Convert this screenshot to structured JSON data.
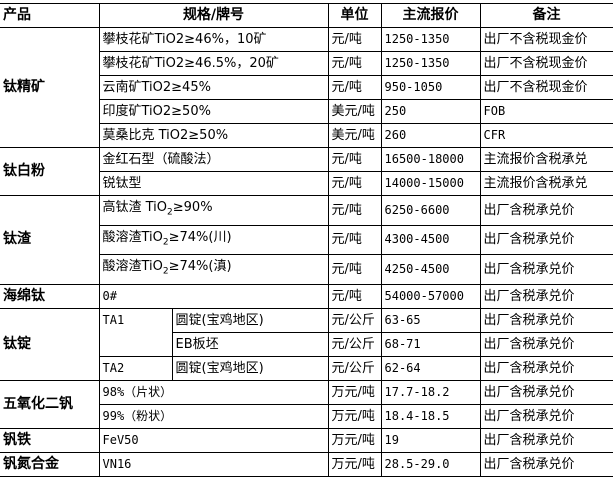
{
  "headers": {
    "product": "产品",
    "spec": "规格/牌号",
    "unit": "单位",
    "price": "主流报价",
    "note": "备注"
  },
  "groups": {
    "titanium_concentrate": {
      "product": "钛精矿",
      "rows": [
        {
          "spec": "攀枝花矿TiO2≥46%，10矿",
          "unit": "元/吨",
          "price": "1250-1350",
          "note": "出厂不含税现金价"
        },
        {
          "spec": "攀枝花矿TiO2≥46.5%，20矿",
          "unit": "元/吨",
          "price": "1250-1350",
          "note": "出厂不含税现金价"
        },
        {
          "spec": "云南矿TiO2≥45%",
          "unit": "元/吨",
          "price": "950-1050",
          "note": "出厂不含税现金价"
        },
        {
          "spec": "印度矿TiO2≥50%",
          "unit": "美元/吨",
          "price": "250",
          "note": "FOB"
        },
        {
          "spec": "莫桑比克 TiO2≥50%",
          "unit": "美元/吨",
          "price": "260",
          "note": "CFR"
        }
      ]
    },
    "titanium_dioxide": {
      "product": "钛白粉",
      "rows": [
        {
          "spec": "金红石型（硫酸法）",
          "unit": "元/吨",
          "price": "16500-18000",
          "note": "主流报价含税承兑"
        },
        {
          "spec": "锐钛型",
          "unit": "元/吨",
          "price": "14000-15000",
          "note": "主流报价含税承兑"
        }
      ]
    },
    "titanium_slag": {
      "product": "钛渣",
      "rows": [
        {
          "spec_pre": "高钛渣 TiO",
          "spec_sub": "2",
          "spec_post": "≥90%",
          "unit": "元/吨",
          "price": "6250-6600",
          "note": "出厂含税承兑价"
        },
        {
          "spec_pre": "酸溶渣TiO",
          "spec_sub": "2",
          "spec_post": "≥74%(川)",
          "unit": "元/吨",
          "price": "4300-4500",
          "note": "出厂含税承兑价"
        },
        {
          "spec_pre": "酸溶渣TiO",
          "spec_sub": "2",
          "spec_post": "≥74%(滇)",
          "unit": "元/吨",
          "price": "4250-4500",
          "note": "出厂含税承兑价"
        }
      ]
    },
    "sponge_titanium": {
      "product": "海绵钛",
      "rows": [
        {
          "spec": "0#",
          "unit": "元/吨",
          "price": "54000-57000",
          "note": "出厂含税承兑价"
        }
      ]
    },
    "titanium_ingot": {
      "product": "钛锭",
      "rows": [
        {
          "grade": "TA1",
          "spec": "圆锭(宝鸡地区)",
          "unit": "元/公斤",
          "price": "63-65",
          "note": "出厂含税承兑价"
        },
        {
          "spec": "EB板坯",
          "unit": "元/公斤",
          "price": "68-71",
          "note": "出厂含税承兑价"
        },
        {
          "grade": "TA2",
          "spec": "圆锭(宝鸡地区)",
          "unit": "元/公斤",
          "price": "62-64",
          "note": "出厂含税承兑价"
        }
      ]
    },
    "vanadium_pentoxide": {
      "product": "五氧化二钒",
      "rows": [
        {
          "spec": "98%（片状）",
          "unit": "万元/吨",
          "price": "17.7-18.2",
          "note": "出厂含税承兑价"
        },
        {
          "spec": "99%（粉状）",
          "unit": "万元/吨",
          "price": "18.4-18.5",
          "note": "出厂含税承兑价"
        }
      ]
    },
    "ferrovanadium": {
      "product": "钒铁",
      "rows": [
        {
          "spec": "FeV50",
          "unit": "万元/吨",
          "price": "19",
          "note": "出厂含税承兑价"
        }
      ]
    },
    "vanadium_nitrogen": {
      "product": "钒氮合金",
      "rows": [
        {
          "spec": "VN16",
          "unit": "万元/吨",
          "price": "28.5-29.0",
          "note": "出厂含税承兑价"
        }
      ]
    }
  }
}
